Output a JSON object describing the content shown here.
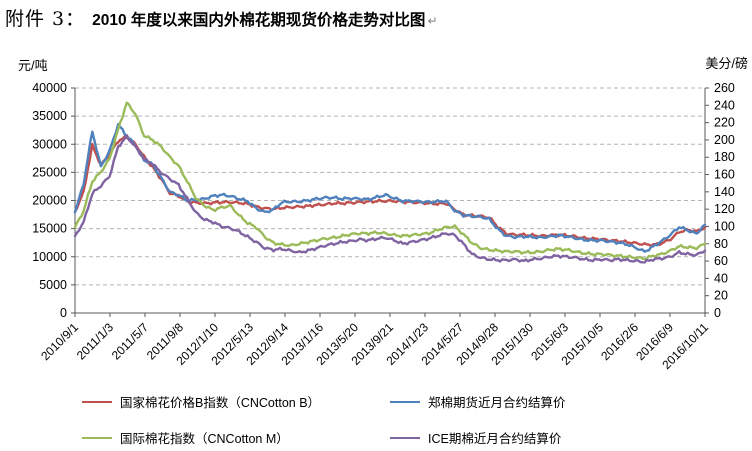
{
  "page": {
    "prefix": "附件 3：",
    "title": "2010 年度以来国内外棉花期现货价格走势对比图",
    "return_mark": "↵"
  },
  "chart_data": {
    "type": "line",
    "title": "2010 年度以来国内外棉花期现货价格走势对比图",
    "grid": "horizontal-dashed",
    "legend_position": "bottom-two-columns",
    "left_axis": {
      "label": "元/吨",
      "min": 0,
      "max": 40000,
      "tick_step": 5000
    },
    "right_axis": {
      "label": "美分/磅",
      "min": 0,
      "max": 260,
      "tick_step": 20
    },
    "x_tick_labels": [
      "2010/9/1",
      "2011/1/3",
      "2011/5/7",
      "2011/9/8",
      "2012/1/10",
      "2012/5/13",
      "2012/9/14",
      "2013/1/16",
      "2013/5/20",
      "2013/9/21",
      "2014/1/23",
      "2014/5/27",
      "2014/9/28",
      "2015/1/30",
      "2015/6/3",
      "2015/10/5",
      "2016/2/6",
      "2016/6/9",
      "2016/10/11"
    ],
    "x_months": [
      "2010/09",
      "2010/10",
      "2010/11",
      "2010/12",
      "2011/01",
      "2011/02",
      "2011/03",
      "2011/04",
      "2011/05",
      "2011/06",
      "2011/07",
      "2011/08",
      "2011/09",
      "2011/10",
      "2011/11",
      "2011/12",
      "2012/01",
      "2012/02",
      "2012/03",
      "2012/04",
      "2012/05",
      "2012/06",
      "2012/07",
      "2012/08",
      "2012/09",
      "2012/10",
      "2012/11",
      "2012/12",
      "2013/01",
      "2013/02",
      "2013/03",
      "2013/04",
      "2013/05",
      "2013/06",
      "2013/07",
      "2013/08",
      "2013/09",
      "2013/10",
      "2013/11",
      "2013/12",
      "2014/01",
      "2014/02",
      "2014/03",
      "2014/04",
      "2014/05",
      "2014/06",
      "2014/07",
      "2014/08",
      "2014/09",
      "2014/10",
      "2014/11",
      "2014/12",
      "2015/01",
      "2015/02",
      "2015/03",
      "2015/04",
      "2015/05",
      "2015/06",
      "2015/07",
      "2015/08",
      "2015/09",
      "2015/10",
      "2015/11",
      "2015/12",
      "2016/01",
      "2016/02",
      "2016/03",
      "2016/04",
      "2016/05",
      "2016/06",
      "2016/07",
      "2016/08",
      "2016/09",
      "2016/10"
    ],
    "series": [
      {
        "name": "国家棉花价格B指数（CNCotton B）",
        "axis": "left",
        "unit": "元/吨",
        "color": "#C0504D",
        "values": [
          18000,
          21500,
          29800,
          26300,
          28200,
          30600,
          31300,
          30000,
          27800,
          25900,
          23800,
          21300,
          20800,
          19900,
          19600,
          19500,
          19600,
          19700,
          19700,
          19600,
          19400,
          18900,
          18600,
          18500,
          18700,
          18800,
          18900,
          19000,
          19200,
          19300,
          19500,
          19500,
          19600,
          19700,
          19800,
          19900,
          19900,
          19900,
          19800,
          19700,
          19600,
          19500,
          19400,
          19500,
          18400,
          17500,
          17300,
          17200,
          17000,
          15300,
          14100,
          13900,
          13900,
          13800,
          13700,
          13800,
          13900,
          13800,
          13600,
          13300,
          13200,
          13100,
          12900,
          12800,
          12600,
          12400,
          12200,
          12100,
          12400,
          13100,
          14400,
          14800,
          14500,
          15200
        ]
      },
      {
        "name": "郑棉期货近月合约结算价",
        "axis": "left",
        "unit": "元/吨",
        "color": "#4F81BD",
        "values": [
          17900,
          23000,
          32300,
          26000,
          28800,
          33500,
          31500,
          29800,
          27200,
          26400,
          24000,
          21500,
          21000,
          20000,
          20100,
          20300,
          20800,
          21000,
          20800,
          20300,
          19900,
          18600,
          17900,
          18400,
          19700,
          19800,
          19800,
          20000,
          20300,
          20500,
          20500,
          20300,
          20400,
          20300,
          20200,
          20600,
          21000,
          20400,
          19900,
          19900,
          19800,
          19700,
          19800,
          19900,
          18200,
          17400,
          17200,
          17100,
          16700,
          14900,
          13700,
          13500,
          13600,
          13500,
          13400,
          13600,
          13800,
          13600,
          13300,
          13000,
          12900,
          12900,
          12700,
          12500,
          12200,
          11600,
          10900,
          11800,
          12800,
          13900,
          15300,
          14700,
          14100,
          15700
        ]
      },
      {
        "name": "国际棉花指数（CNCotton M）",
        "axis": "right",
        "unit": "美分/磅",
        "color": "#9BBB59",
        "values": [
          99,
          118,
          152,
          163,
          178,
          212,
          243,
          230,
          205,
          200,
          192,
          180,
          170,
          152,
          133,
          124,
          119,
          122,
          124,
          113,
          104,
          99,
          88,
          81,
          79,
          78,
          80,
          82,
          84,
          86,
          87,
          89,
          91,
          92,
          92,
          93,
          92,
          90,
          89,
          90,
          91,
          92,
          96,
          99,
          100,
          91,
          81,
          75,
          73,
          72,
          71,
          71,
          70,
          70,
          71,
          73,
          74,
          73,
          71,
          69,
          68,
          68,
          67,
          66,
          65,
          64,
          63,
          66,
          68,
          72,
          77,
          76,
          75,
          80
        ]
      },
      {
        "name": "ICE期棉近月合约结算价",
        "axis": "right",
        "unit": "美分/磅",
        "color": "#8064A2",
        "values": [
          89,
          105,
          138,
          147,
          158,
          192,
          204,
          192,
          178,
          172,
          162,
          155,
          148,
          132,
          116,
          108,
          105,
          100,
          98,
          94,
          88,
          82,
          75,
          73,
          74,
          72,
          70,
          72,
          75,
          78,
          80,
          82,
          83,
          85,
          84,
          86,
          87,
          84,
          80,
          82,
          84,
          86,
          89,
          92,
          90,
          80,
          68,
          64,
          62,
          61,
          61,
          62,
          60,
          62,
          63,
          65,
          66,
          65,
          64,
          62,
          61,
          62,
          61,
          62,
          61,
          60,
          59,
          62,
          63,
          65,
          70,
          68,
          67,
          72
        ]
      }
    ]
  }
}
